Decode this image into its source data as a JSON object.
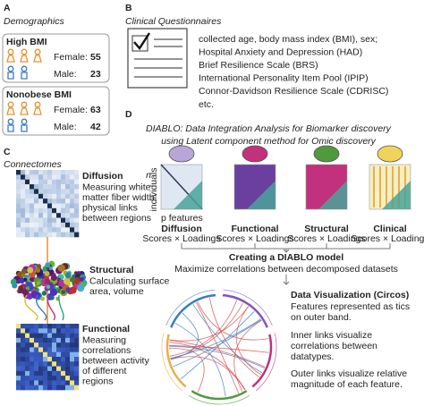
{
  "panel_a": {
    "letter": "A",
    "title": "Demographics",
    "groups": [
      {
        "name": "High BMI",
        "rows": [
          {
            "label": "Female:",
            "count": 55
          },
          {
            "label": "Male:",
            "count": 23
          }
        ]
      },
      {
        "name": "Nonobese BMI",
        "rows": [
          {
            "label": "Female:",
            "count": 63
          },
          {
            "label": "Male:",
            "count": 42
          }
        ]
      }
    ]
  },
  "panel_b": {
    "letter": "B",
    "title": "Clinical Questionnaires",
    "items": [
      "collected age, body mass index (BMI), sex;",
      "Hospital Anxiety and Depression (HAD)",
      "Brief Resilience Scale (BRS)",
      "International Personality Item Pool (IPIP)",
      "Connor-Davidson Resilience Scale (CDRISC)",
      "etc."
    ]
  },
  "panel_c": {
    "letter": "C",
    "title": "Connectomes",
    "modalities": [
      {
        "name": "Diffusion",
        "description": [
          "Measuring white",
          "matter fiber width:",
          "physical links",
          "between regions"
        ]
      },
      {
        "name": "Structural",
        "description": [
          "Calculating surface",
          "area, volume"
        ]
      },
      {
        "name": "Functional",
        "description": [
          "Measuring",
          "correlations",
          "between activity",
          "of different",
          "regions"
        ]
      }
    ]
  },
  "panel_d": {
    "letter": "D",
    "title": [
      "DIABLO: Data Integration Analysis for Biomarker discovery",
      "using Latent component method for Omic discovery"
    ],
    "rows_label": [
      "n",
      "individuals"
    ],
    "cols_label": "p features",
    "blocks": [
      {
        "name": "Diffusion",
        "sub": "Scores × Loadings"
      },
      {
        "name": "Functional",
        "sub": "Scores × Loadings"
      },
      {
        "name": "Structural",
        "sub": "Scores × Loadings"
      },
      {
        "name": "Clinical",
        "sub": "Scores × Loadings"
      }
    ],
    "model_title": "Creating a DIABLO model",
    "model_text": "Maximize correlations between decomposed datasets",
    "viz_title": "Data Visualization (Circos)",
    "viz_text": [
      "Features represented as tics",
      "on outer band.",
      "Inner links visualize",
      "correlations between",
      "datatypes.",
      "Outer links visualize relative",
      "magnitude of each feature."
    ]
  }
}
